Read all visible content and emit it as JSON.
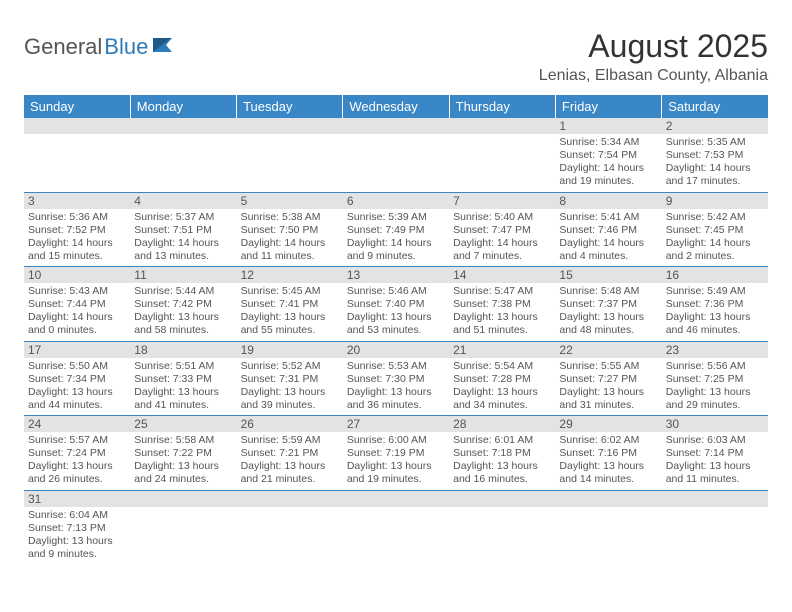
{
  "logo": {
    "part1": "General",
    "part2": "Blue"
  },
  "header": {
    "monthTitle": "August 2025",
    "location": "Lenias, Elbasan County, Albania"
  },
  "colors": {
    "headerBg": "#3a87c7",
    "headerText": "#ffffff",
    "dayBarBg": "#e3e3e3",
    "cellBorder": "#3a87c7",
    "bodyText": "#555555",
    "logoBlue": "#2f7ab8"
  },
  "typography": {
    "titleSize": 32,
    "locationSize": 16,
    "headerCellSize": 13,
    "bodySize": 10.5
  },
  "dayHeaders": [
    "Sunday",
    "Monday",
    "Tuesday",
    "Wednesday",
    "Thursday",
    "Friday",
    "Saturday"
  ],
  "weeks": [
    [
      null,
      null,
      null,
      null,
      null,
      {
        "n": "1",
        "sunrise": "Sunrise: 5:34 AM",
        "sunset": "Sunset: 7:54 PM",
        "daylight": "Daylight: 14 hours and 19 minutes."
      },
      {
        "n": "2",
        "sunrise": "Sunrise: 5:35 AM",
        "sunset": "Sunset: 7:53 PM",
        "daylight": "Daylight: 14 hours and 17 minutes."
      }
    ],
    [
      {
        "n": "3",
        "sunrise": "Sunrise: 5:36 AM",
        "sunset": "Sunset: 7:52 PM",
        "daylight": "Daylight: 14 hours and 15 minutes."
      },
      {
        "n": "4",
        "sunrise": "Sunrise: 5:37 AM",
        "sunset": "Sunset: 7:51 PM",
        "daylight": "Daylight: 14 hours and 13 minutes."
      },
      {
        "n": "5",
        "sunrise": "Sunrise: 5:38 AM",
        "sunset": "Sunset: 7:50 PM",
        "daylight": "Daylight: 14 hours and 11 minutes."
      },
      {
        "n": "6",
        "sunrise": "Sunrise: 5:39 AM",
        "sunset": "Sunset: 7:49 PM",
        "daylight": "Daylight: 14 hours and 9 minutes."
      },
      {
        "n": "7",
        "sunrise": "Sunrise: 5:40 AM",
        "sunset": "Sunset: 7:47 PM",
        "daylight": "Daylight: 14 hours and 7 minutes."
      },
      {
        "n": "8",
        "sunrise": "Sunrise: 5:41 AM",
        "sunset": "Sunset: 7:46 PM",
        "daylight": "Daylight: 14 hours and 4 minutes."
      },
      {
        "n": "9",
        "sunrise": "Sunrise: 5:42 AM",
        "sunset": "Sunset: 7:45 PM",
        "daylight": "Daylight: 14 hours and 2 minutes."
      }
    ],
    [
      {
        "n": "10",
        "sunrise": "Sunrise: 5:43 AM",
        "sunset": "Sunset: 7:44 PM",
        "daylight": "Daylight: 14 hours and 0 minutes."
      },
      {
        "n": "11",
        "sunrise": "Sunrise: 5:44 AM",
        "sunset": "Sunset: 7:42 PM",
        "daylight": "Daylight: 13 hours and 58 minutes."
      },
      {
        "n": "12",
        "sunrise": "Sunrise: 5:45 AM",
        "sunset": "Sunset: 7:41 PM",
        "daylight": "Daylight: 13 hours and 55 minutes."
      },
      {
        "n": "13",
        "sunrise": "Sunrise: 5:46 AM",
        "sunset": "Sunset: 7:40 PM",
        "daylight": "Daylight: 13 hours and 53 minutes."
      },
      {
        "n": "14",
        "sunrise": "Sunrise: 5:47 AM",
        "sunset": "Sunset: 7:38 PM",
        "daylight": "Daylight: 13 hours and 51 minutes."
      },
      {
        "n": "15",
        "sunrise": "Sunrise: 5:48 AM",
        "sunset": "Sunset: 7:37 PM",
        "daylight": "Daylight: 13 hours and 48 minutes."
      },
      {
        "n": "16",
        "sunrise": "Sunrise: 5:49 AM",
        "sunset": "Sunset: 7:36 PM",
        "daylight": "Daylight: 13 hours and 46 minutes."
      }
    ],
    [
      {
        "n": "17",
        "sunrise": "Sunrise: 5:50 AM",
        "sunset": "Sunset: 7:34 PM",
        "daylight": "Daylight: 13 hours and 44 minutes."
      },
      {
        "n": "18",
        "sunrise": "Sunrise: 5:51 AM",
        "sunset": "Sunset: 7:33 PM",
        "daylight": "Daylight: 13 hours and 41 minutes."
      },
      {
        "n": "19",
        "sunrise": "Sunrise: 5:52 AM",
        "sunset": "Sunset: 7:31 PM",
        "daylight": "Daylight: 13 hours and 39 minutes."
      },
      {
        "n": "20",
        "sunrise": "Sunrise: 5:53 AM",
        "sunset": "Sunset: 7:30 PM",
        "daylight": "Daylight: 13 hours and 36 minutes."
      },
      {
        "n": "21",
        "sunrise": "Sunrise: 5:54 AM",
        "sunset": "Sunset: 7:28 PM",
        "daylight": "Daylight: 13 hours and 34 minutes."
      },
      {
        "n": "22",
        "sunrise": "Sunrise: 5:55 AM",
        "sunset": "Sunset: 7:27 PM",
        "daylight": "Daylight: 13 hours and 31 minutes."
      },
      {
        "n": "23",
        "sunrise": "Sunrise: 5:56 AM",
        "sunset": "Sunset: 7:25 PM",
        "daylight": "Daylight: 13 hours and 29 minutes."
      }
    ],
    [
      {
        "n": "24",
        "sunrise": "Sunrise: 5:57 AM",
        "sunset": "Sunset: 7:24 PM",
        "daylight": "Daylight: 13 hours and 26 minutes."
      },
      {
        "n": "25",
        "sunrise": "Sunrise: 5:58 AM",
        "sunset": "Sunset: 7:22 PM",
        "daylight": "Daylight: 13 hours and 24 minutes."
      },
      {
        "n": "26",
        "sunrise": "Sunrise: 5:59 AM",
        "sunset": "Sunset: 7:21 PM",
        "daylight": "Daylight: 13 hours and 21 minutes."
      },
      {
        "n": "27",
        "sunrise": "Sunrise: 6:00 AM",
        "sunset": "Sunset: 7:19 PM",
        "daylight": "Daylight: 13 hours and 19 minutes."
      },
      {
        "n": "28",
        "sunrise": "Sunrise: 6:01 AM",
        "sunset": "Sunset: 7:18 PM",
        "daylight": "Daylight: 13 hours and 16 minutes."
      },
      {
        "n": "29",
        "sunrise": "Sunrise: 6:02 AM",
        "sunset": "Sunset: 7:16 PM",
        "daylight": "Daylight: 13 hours and 14 minutes."
      },
      {
        "n": "30",
        "sunrise": "Sunrise: 6:03 AM",
        "sunset": "Sunset: 7:14 PM",
        "daylight": "Daylight: 13 hours and 11 minutes."
      }
    ],
    [
      {
        "n": "31",
        "sunrise": "Sunrise: 6:04 AM",
        "sunset": "Sunset: 7:13 PM",
        "daylight": "Daylight: 13 hours and 9 minutes."
      },
      null,
      null,
      null,
      null,
      null,
      null
    ]
  ]
}
